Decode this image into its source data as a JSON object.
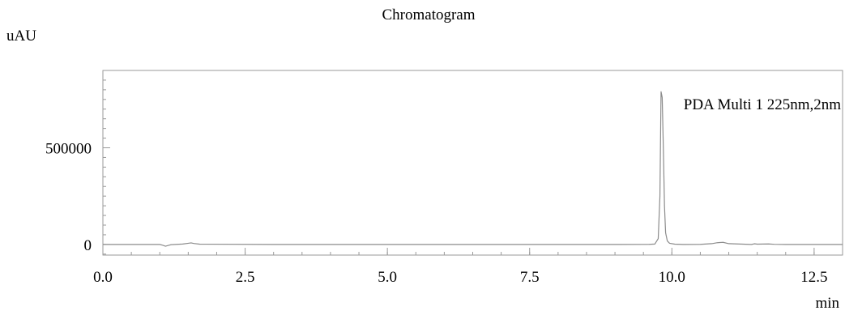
{
  "chart_data": {
    "type": "line",
    "title": "Chromatogram",
    "xlabel": "min",
    "ylabel": "uAU",
    "xlim": [
      0,
      13
    ],
    "ylim": [
      -55000,
      900000
    ],
    "x_ticks": [
      {
        "value": 0.0,
        "label": "0.0"
      },
      {
        "value": 2.5,
        "label": "2.5"
      },
      {
        "value": 5.0,
        "label": "5.0"
      },
      {
        "value": 7.5,
        "label": "7.5"
      },
      {
        "value": 10.0,
        "label": "10.0"
      },
      {
        "value": 12.5,
        "label": "12.5"
      }
    ],
    "y_ticks": [
      {
        "value": 0,
        "label": "0"
      },
      {
        "value": 500000,
        "label": "500000"
      }
    ],
    "grid": false,
    "legend": "top-right",
    "series": [
      {
        "name": "PDA Multi 1 225nm,2nm",
        "color": "#8c8c8c",
        "x": [
          0.0,
          1.0,
          1.05,
          1.1,
          1.15,
          1.2,
          1.4,
          1.5,
          1.55,
          1.6,
          1.7,
          3.0,
          5.0,
          7.0,
          9.0,
          9.6,
          9.7,
          9.76,
          9.79,
          9.81,
          9.83,
          9.85,
          9.87,
          9.89,
          9.92,
          9.96,
          10.05,
          10.2,
          10.5,
          10.7,
          10.8,
          10.9,
          11.0,
          11.4,
          11.45,
          11.5,
          11.7,
          11.8,
          12.0,
          13.0
        ],
        "y": [
          0,
          0,
          -4000,
          -9000,
          -5000,
          -1000,
          2000,
          6000,
          8000,
          5000,
          1500,
          0,
          0,
          0,
          0,
          500,
          2000,
          30000,
          250000,
          790000,
          760000,
          500000,
          200000,
          60000,
          18000,
          6000,
          1500,
          0,
          500,
          4000,
          9000,
          11000,
          4000,
          0,
          3500,
          1500,
          2500,
          800,
          0,
          0
        ]
      }
    ]
  }
}
